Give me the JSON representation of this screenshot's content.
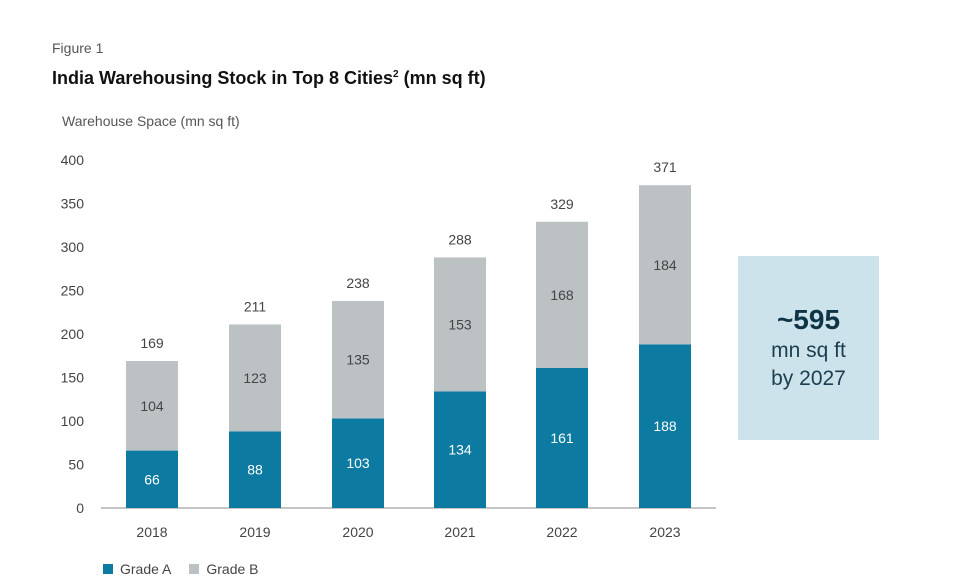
{
  "figure_label": "Figure 1",
  "title_main": "India Warehousing Stock in Top 8 Cities",
  "title_sup": "2",
  "title_unit": " (mn sq ft)",
  "colors": {
    "grade_a": "#0c7aa1",
    "grade_b": "#bcc1c4",
    "callout_bg": "#cce3ec"
  },
  "callout": {
    "big": "~595",
    "line1": "mn sq ft",
    "line2": "by 2027"
  },
  "legend": {
    "grade_a": "Grade A",
    "grade_b": "Grade B"
  },
  "chart_data": {
    "type": "bar",
    "stacked": true,
    "ylabel": "Warehouse Space (mn sq ft)",
    "xlabel": "",
    "ylim": [
      0,
      400
    ],
    "yticks": [
      0,
      50,
      100,
      150,
      200,
      250,
      300,
      350,
      400
    ],
    "categories": [
      "2018",
      "2019",
      "2020",
      "2021",
      "2022",
      "2023"
    ],
    "series": [
      {
        "name": "Grade A",
        "values": [
          66,
          88,
          103,
          134,
          161,
          188
        ]
      },
      {
        "name": "Grade B",
        "values": [
          104,
          123,
          135,
          153,
          168,
          184
        ]
      }
    ],
    "totals": [
      169,
      211,
      238,
      288,
      329,
      371
    ],
    "grid": false,
    "legend_position": "bottom-left"
  }
}
